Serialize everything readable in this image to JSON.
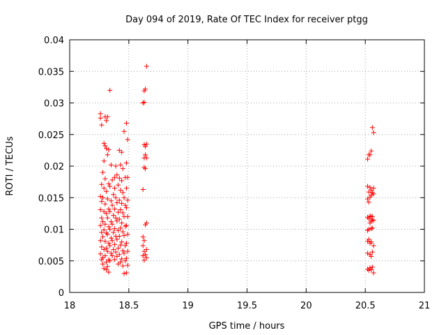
{
  "chart_data": {
    "type": "scatter",
    "title": "Day 094 of 2019, Rate Of TEC Index for receiver ptgg",
    "xlabel": "GPS time / hours",
    "ylabel": "ROTI / TECUs",
    "xlim": [
      18,
      21
    ],
    "ylim": [
      0,
      0.04
    ],
    "grid": true,
    "marker": "+",
    "marker_color": "#ff0000",
    "x_ticks": [
      18,
      18.5,
      19,
      19.5,
      20,
      20.5,
      21
    ],
    "x_tick_labels": [
      "18",
      "18.5",
      "19",
      "19.5",
      "20",
      "20.5",
      "21"
    ],
    "y_ticks": [
      0,
      0.005,
      0.01,
      0.015,
      0.02,
      0.025,
      0.03,
      0.035,
      0.04
    ],
    "y_tick_labels": [
      "0",
      "0.005",
      "0.01",
      "0.015",
      "0.02",
      "0.025",
      "0.03",
      "0.035",
      "0.04"
    ],
    "series": [
      {
        "name": "ROTI",
        "points": [
          [
            18.26,
            0.0283
          ],
          [
            18.26,
            0.0276
          ],
          [
            18.27,
            0.0265
          ],
          [
            18.27,
            0.0171
          ],
          [
            18.26,
            0.0152
          ],
          [
            18.27,
            0.0144
          ],
          [
            18.26,
            0.0131
          ],
          [
            18.27,
            0.0118
          ],
          [
            18.26,
            0.0106
          ],
          [
            18.27,
            0.0095
          ],
          [
            18.26,
            0.0082
          ],
          [
            18.27,
            0.0072
          ],
          [
            18.26,
            0.0061
          ],
          [
            18.27,
            0.0052
          ],
          [
            18.28,
            0.0045
          ],
          [
            18.29,
            0.0236
          ],
          [
            18.29,
            0.0208
          ],
          [
            18.28,
            0.019
          ],
          [
            18.29,
            0.0165
          ],
          [
            18.28,
            0.015
          ],
          [
            18.29,
            0.0128
          ],
          [
            18.28,
            0.0112
          ],
          [
            18.29,
            0.0099
          ],
          [
            18.28,
            0.0088
          ],
          [
            18.29,
            0.0068
          ],
          [
            18.28,
            0.0055
          ],
          [
            18.29,
            0.0038
          ],
          [
            18.3,
            0.0278
          ],
          [
            18.31,
            0.0272
          ],
          [
            18.3,
            0.0232
          ],
          [
            18.31,
            0.0228
          ],
          [
            18.3,
            0.018
          ],
          [
            18.31,
            0.016
          ],
          [
            18.3,
            0.014
          ],
          [
            18.31,
            0.0125
          ],
          [
            18.3,
            0.0108
          ],
          [
            18.31,
            0.0094
          ],
          [
            18.3,
            0.0081
          ],
          [
            18.31,
            0.007
          ],
          [
            18.3,
            0.0058
          ],
          [
            18.31,
            0.0048
          ],
          [
            18.31,
            0.0036
          ],
          [
            18.32,
            0.0278
          ],
          [
            18.33,
            0.0226
          ],
          [
            18.32,
            0.0218
          ],
          [
            18.33,
            0.0172
          ],
          [
            18.32,
            0.0148
          ],
          [
            18.33,
            0.0132
          ],
          [
            18.32,
            0.0118
          ],
          [
            18.33,
            0.0104
          ],
          [
            18.32,
            0.0092
          ],
          [
            18.33,
            0.0078
          ],
          [
            18.32,
            0.0065
          ],
          [
            18.33,
            0.0052
          ],
          [
            18.32,
            0.0041
          ],
          [
            18.33,
            0.0032
          ],
          [
            18.34,
            0.032
          ],
          [
            18.35,
            0.0202
          ],
          [
            18.34,
            0.0168
          ],
          [
            18.35,
            0.0145
          ],
          [
            18.34,
            0.0128
          ],
          [
            18.35,
            0.0112
          ],
          [
            18.34,
            0.01
          ],
          [
            18.35,
            0.0086
          ],
          [
            18.34,
            0.0074
          ],
          [
            18.35,
            0.0062
          ],
          [
            18.34,
            0.005
          ],
          [
            18.36,
            0.0178
          ],
          [
            18.37,
            0.0155
          ],
          [
            18.36,
            0.0138
          ],
          [
            18.37,
            0.0122
          ],
          [
            18.36,
            0.0108
          ],
          [
            18.37,
            0.0095
          ],
          [
            18.36,
            0.0082
          ],
          [
            18.37,
            0.0068
          ],
          [
            18.36,
            0.0058
          ],
          [
            18.38,
            0.0182
          ],
          [
            18.39,
            0.02
          ],
          [
            18.38,
            0.0165
          ],
          [
            18.39,
            0.015
          ],
          [
            18.38,
            0.0132
          ],
          [
            18.39,
            0.0118
          ],
          [
            18.38,
            0.0101
          ],
          [
            18.39,
            0.0089
          ],
          [
            18.38,
            0.0076
          ],
          [
            18.39,
            0.0064
          ],
          [
            18.38,
            0.0052
          ],
          [
            18.4,
            0.0186
          ],
          [
            18.41,
            0.017
          ],
          [
            18.4,
            0.0142
          ],
          [
            18.41,
            0.0127
          ],
          [
            18.4,
            0.0113
          ],
          [
            18.41,
            0.0098
          ],
          [
            18.4,
            0.0084
          ],
          [
            18.41,
            0.007
          ],
          [
            18.4,
            0.0057
          ],
          [
            18.41,
            0.0045
          ],
          [
            18.42,
            0.0225
          ],
          [
            18.43,
            0.0202
          ],
          [
            18.42,
            0.0181
          ],
          [
            18.43,
            0.0162
          ],
          [
            18.42,
            0.0146
          ],
          [
            18.43,
            0.0131
          ],
          [
            18.42,
            0.0116
          ],
          [
            18.43,
            0.0102
          ],
          [
            18.42,
            0.0089
          ],
          [
            18.43,
            0.0075
          ],
          [
            18.42,
            0.006
          ],
          [
            18.43,
            0.0048
          ],
          [
            18.44,
            0.0222
          ],
          [
            18.45,
            0.0196
          ],
          [
            18.44,
            0.0177
          ],
          [
            18.45,
            0.0158
          ],
          [
            18.44,
            0.0141
          ],
          [
            18.45,
            0.0126
          ],
          [
            18.44,
            0.011
          ],
          [
            18.45,
            0.0096
          ],
          [
            18.44,
            0.008
          ],
          [
            18.45,
            0.0066
          ],
          [
            18.44,
            0.0053
          ],
          [
            18.45,
            0.0042
          ],
          [
            18.46,
            0.0255
          ],
          [
            18.47,
            0.0182
          ],
          [
            18.46,
            0.015
          ],
          [
            18.47,
            0.0138
          ],
          [
            18.46,
            0.012
          ],
          [
            18.47,
            0.0105
          ],
          [
            18.46,
            0.009
          ],
          [
            18.47,
            0.0074
          ],
          [
            18.46,
            0.0062
          ],
          [
            18.47,
            0.005
          ],
          [
            18.46,
            0.003
          ],
          [
            18.48,
            0.0268
          ],
          [
            18.49,
            0.0242
          ],
          [
            18.48,
            0.0205
          ],
          [
            18.49,
            0.0182
          ],
          [
            18.48,
            0.0165
          ],
          [
            18.49,
            0.0146
          ],
          [
            18.48,
            0.0134
          ],
          [
            18.49,
            0.012
          ],
          [
            18.48,
            0.0106
          ],
          [
            18.49,
            0.0092
          ],
          [
            18.48,
            0.0078
          ],
          [
            18.49,
            0.0065
          ],
          [
            18.48,
            0.0054
          ],
          [
            18.49,
            0.0043
          ],
          [
            18.48,
            0.0031
          ],
          [
            18.62,
            0.03
          ],
          [
            18.62,
            0.0163
          ],
          [
            18.62,
            0.0088
          ],
          [
            18.62,
            0.0074
          ],
          [
            18.62,
            0.0058
          ],
          [
            18.63,
            0.0319
          ],
          [
            18.63,
            0.0301
          ],
          [
            18.63,
            0.0234
          ],
          [
            18.63,
            0.0213
          ],
          [
            18.63,
            0.0198
          ],
          [
            18.63,
            0.0082
          ],
          [
            18.63,
            0.0065
          ],
          [
            18.63,
            0.0051
          ],
          [
            18.64,
            0.0322
          ],
          [
            18.64,
            0.0231
          ],
          [
            18.64,
            0.0218
          ],
          [
            18.64,
            0.0196
          ],
          [
            18.64,
            0.0107
          ],
          [
            18.64,
            0.006
          ],
          [
            18.65,
            0.0358
          ],
          [
            18.65,
            0.0235
          ],
          [
            18.65,
            0.0213
          ],
          [
            18.65,
            0.011
          ],
          [
            18.65,
            0.0068
          ],
          [
            18.65,
            0.0055
          ],
          [
            20.52,
            0.0211
          ],
          [
            20.52,
            0.0168
          ],
          [
            20.52,
            0.0148
          ],
          [
            20.52,
            0.0119
          ],
          [
            20.52,
            0.0098
          ],
          [
            20.52,
            0.0081
          ],
          [
            20.52,
            0.0062
          ],
          [
            20.52,
            0.0037
          ],
          [
            20.53,
            0.0218
          ],
          [
            20.53,
            0.0159
          ],
          [
            20.53,
            0.0143
          ],
          [
            20.53,
            0.0117
          ],
          [
            20.53,
            0.01
          ],
          [
            20.53,
            0.0084
          ],
          [
            20.53,
            0.0035
          ],
          [
            20.54,
            0.0218
          ],
          [
            20.54,
            0.0166
          ],
          [
            20.54,
            0.0151
          ],
          [
            20.54,
            0.0121
          ],
          [
            20.54,
            0.011
          ],
          [
            20.54,
            0.0078
          ],
          [
            20.54,
            0.006
          ],
          [
            20.54,
            0.0039
          ],
          [
            20.55,
            0.0224
          ],
          [
            20.55,
            0.0162
          ],
          [
            20.55,
            0.0154
          ],
          [
            20.55,
            0.012
          ],
          [
            20.55,
            0.0113
          ],
          [
            20.55,
            0.0101
          ],
          [
            20.55,
            0.008
          ],
          [
            20.55,
            0.0057
          ],
          [
            20.55,
            0.0036
          ],
          [
            20.56,
            0.0261
          ],
          [
            20.56,
            0.0158
          ],
          [
            20.56,
            0.012
          ],
          [
            20.56,
            0.0115
          ],
          [
            20.56,
            0.0102
          ],
          [
            20.56,
            0.0064
          ],
          [
            20.56,
            0.004
          ],
          [
            20.57,
            0.0253
          ],
          [
            20.57,
            0.0165
          ],
          [
            20.57,
            0.0156
          ],
          [
            20.57,
            0.0114
          ],
          [
            20.57,
            0.0074
          ],
          [
            20.57,
            0.0031
          ]
        ]
      }
    ]
  }
}
